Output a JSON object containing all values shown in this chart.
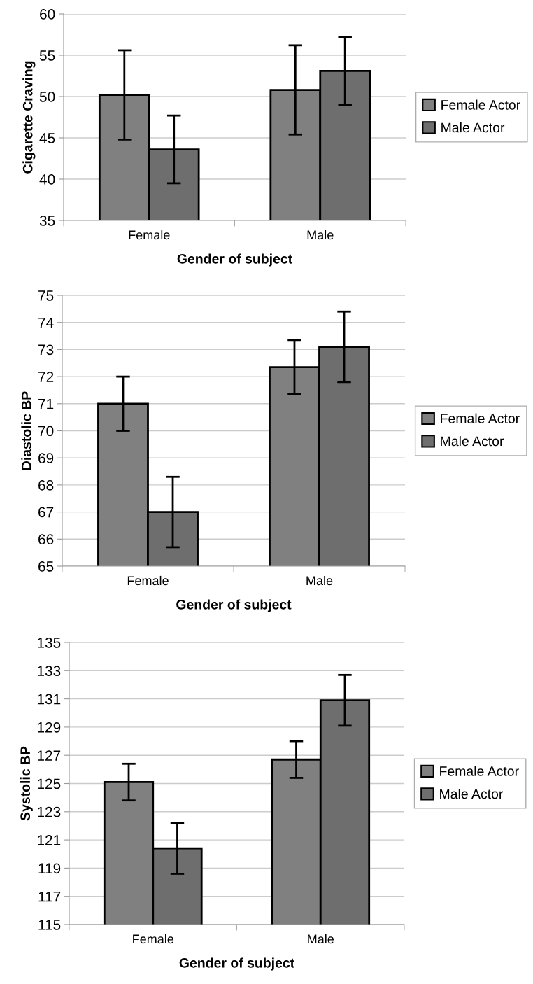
{
  "chart_data": [
    {
      "type": "bar",
      "xlabel": "Gender of subject",
      "ylabel": "Cigarette Craving",
      "categories": [
        "Female",
        "Male"
      ],
      "ylim": [
        35,
        60
      ],
      "yticks": [
        35,
        40,
        45,
        50,
        55,
        60
      ],
      "grid": "y",
      "legend": "right",
      "series": [
        {
          "name": "Female Actor",
          "color": "#808080",
          "values": [
            50.2,
            50.8
          ],
          "errors": [
            5.4,
            5.4
          ]
        },
        {
          "name": "Male Actor",
          "color": "#6e6e6e",
          "values": [
            43.6,
            53.1
          ],
          "errors": [
            4.1,
            4.1
          ]
        }
      ]
    },
    {
      "type": "bar",
      "xlabel": "Gender of subject",
      "ylabel": "Diastolic BP",
      "categories": [
        "Female",
        "Male"
      ],
      "ylim": [
        65,
        75
      ],
      "yticks": [
        65,
        66,
        67,
        68,
        69,
        70,
        71,
        72,
        73,
        74,
        75
      ],
      "grid": "y",
      "legend": "right",
      "series": [
        {
          "name": "Female Actor",
          "color": "#808080",
          "values": [
            71.0,
            72.35
          ],
          "errors": [
            1.0,
            1.0
          ]
        },
        {
          "name": "Male Actor",
          "color": "#6e6e6e",
          "values": [
            67.0,
            73.1
          ],
          "errors": [
            1.3,
            1.3
          ]
        }
      ]
    },
    {
      "type": "bar",
      "xlabel": "Gender of subject",
      "ylabel": "Systolic BP",
      "categories": [
        "Female",
        "Male"
      ],
      "ylim": [
        115,
        135
      ],
      "yticks": [
        115,
        117,
        119,
        121,
        123,
        125,
        127,
        129,
        131,
        133,
        135
      ],
      "grid": "y",
      "legend": "right",
      "series": [
        {
          "name": "Female Actor",
          "color": "#808080",
          "values": [
            125.1,
            126.7
          ],
          "errors": [
            1.3,
            1.3
          ]
        },
        {
          "name": "Male Actor",
          "color": "#6e6e6e",
          "values": [
            120.4,
            130.9
          ],
          "errors": [
            1.8,
            1.8
          ]
        }
      ]
    }
  ]
}
